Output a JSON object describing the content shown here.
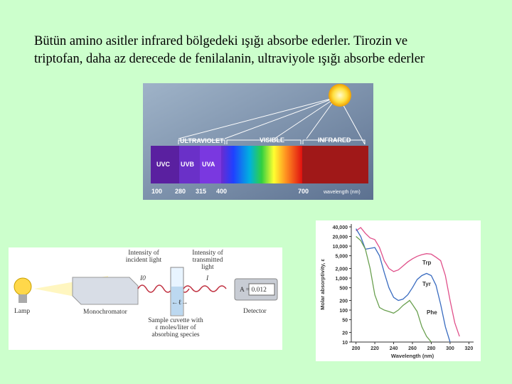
{
  "text": {
    "lines": [
      "Bütün amino asitler infrared bölgedeki ışığı absorbe ederler. Tirozin ve",
      "triptofan, daha az derecede de fenilalanin, ultraviyole ışığı absorbe ederler"
    ]
  },
  "spectrum": {
    "regions": [
      "ULTRAVIOLET",
      "VISIBLE",
      "INFRARED"
    ],
    "uv_bands": [
      "UVC",
      "UVB",
      "UVA"
    ],
    "scale": [
      100,
      280,
      315,
      400,
      700
    ],
    "scale_unit": "wavelength (nm)"
  },
  "instrument": {
    "incident": "Intensity of incident light",
    "incident_symbol": "I0",
    "transmitted": "Intensity of transmitted light",
    "transmitted_symbol": "I",
    "lamp": "Lamp",
    "monochromator": "Monochromator",
    "cuvette": "Sample cuvette with ε moles/liter of absorbing species",
    "path_length": "←ℓ→",
    "reading": "A = 0.012",
    "detector": "Detector"
  },
  "chart_data": {
    "type": "line",
    "xlabel": "Wavelength (nm)",
    "ylabel": "Molar absorptivity, ε",
    "log_y": true,
    "xlim": [
      195,
      325
    ],
    "xticks": [
      200,
      220,
      240,
      260,
      280,
      300,
      320
    ],
    "ylim": [
      10,
      40000
    ],
    "yticks": [
      10,
      20,
      50,
      100,
      200,
      500,
      {
        "value": 1000,
        "label": "1,000"
      },
      {
        "value": 2000,
        "label": "2,000"
      },
      {
        "value": 5000,
        "label": "5,000"
      },
      {
        "value": 10000,
        "label": "10,000"
      },
      {
        "value": 20000,
        "label": "20,000"
      },
      {
        "value": 40000,
        "label": "40,000"
      }
    ],
    "series": [
      {
        "name": "Trp",
        "color": "#e0508a",
        "x": [
          200,
          205,
          210,
          215,
          220,
          225,
          230,
          235,
          240,
          245,
          250,
          255,
          260,
          265,
          270,
          275,
          280,
          285,
          290,
          295,
          300,
          305,
          310
        ],
        "values": [
          30000,
          38000,
          25000,
          18000,
          16000,
          9000,
          3500,
          2000,
          1600,
          1800,
          2400,
          3200,
          4000,
          4800,
          5400,
          5800,
          5600,
          4500,
          3500,
          1200,
          200,
          40,
          15
        ]
      },
      {
        "name": "Tyr",
        "color": "#3a6cc0",
        "x": [
          200,
          205,
          210,
          215,
          220,
          225,
          230,
          235,
          240,
          245,
          250,
          255,
          260,
          265,
          270,
          275,
          280,
          285,
          290,
          295,
          300
        ],
        "values": [
          35000,
          20000,
          8000,
          8500,
          9000,
          5000,
          1500,
          500,
          250,
          200,
          220,
          300,
          500,
          900,
          1200,
          1400,
          1200,
          600,
          150,
          30,
          10
        ]
      },
      {
        "name": "Phe",
        "color": "#6aa050",
        "x": [
          200,
          205,
          210,
          215,
          220,
          225,
          230,
          235,
          240,
          245,
          250,
          255,
          257,
          260,
          265,
          270,
          275,
          280
        ],
        "values": [
          20000,
          15000,
          8000,
          2000,
          300,
          120,
          100,
          90,
          80,
          100,
          140,
          180,
          200,
          150,
          90,
          30,
          15,
          10
        ]
      }
    ]
  }
}
